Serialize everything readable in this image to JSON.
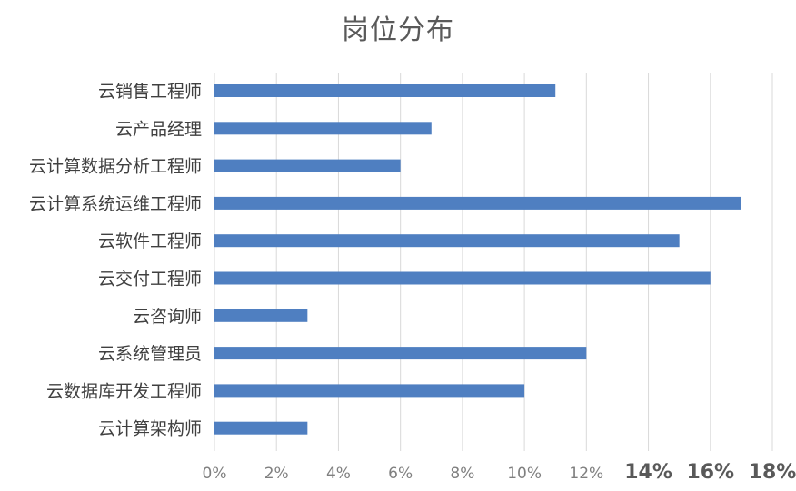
{
  "chart_data": {
    "type": "bar",
    "orientation": "horizontal",
    "title": "岗位分布",
    "categories": [
      "云销售工程师",
      "云产品经理",
      "云计算数据分析工程师",
      "云计算系统运维工程师",
      "云软件工程师",
      "云交付工程师",
      "云咨询师",
      "云系统管理员",
      "云数据库开发工程师",
      "云计算架构师"
    ],
    "values": [
      11,
      7,
      6,
      17,
      15,
      16,
      3,
      12,
      10,
      3
    ],
    "xlim": [
      0,
      18
    ],
    "x_ticks": [
      0,
      2,
      4,
      6,
      8,
      10,
      12,
      14,
      16,
      18
    ],
    "x_tick_labels": [
      "0%",
      "2%",
      "4%",
      "6%",
      "8%",
      "10%",
      "12%",
      "14%",
      "16%",
      "18%"
    ],
    "x_tick_emphasized": [
      14,
      16,
      18
    ],
    "grid": "vertical",
    "legend": "none",
    "bar_color": "#4f7fc1",
    "grid_color": "#d9d9d9"
  }
}
